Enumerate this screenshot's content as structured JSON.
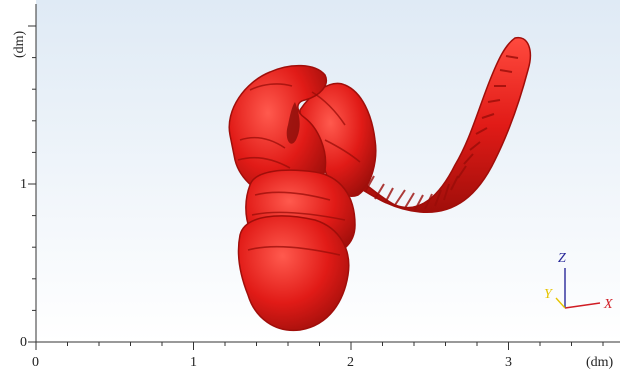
{
  "viewer": {
    "x_axis": {
      "ticks": [
        "0",
        "1",
        "2",
        "3"
      ],
      "unit_label": "(dm)"
    },
    "y_axis": {
      "ticks": [
        "0",
        "1"
      ],
      "unit_label": "(dm)"
    },
    "triad": {
      "x_label": "X",
      "y_label": "Y",
      "z_label": "Z",
      "x_color": "#d01c24",
      "y_color": "#e6c400",
      "z_color": "#2a2a9a"
    },
    "model": {
      "color": "#e11b17",
      "highlight_color": "#ff5a4e",
      "shadow_color": "#8a0c09"
    },
    "background_top": "#dfeaf5",
    "background_bottom": "#ffffff"
  }
}
